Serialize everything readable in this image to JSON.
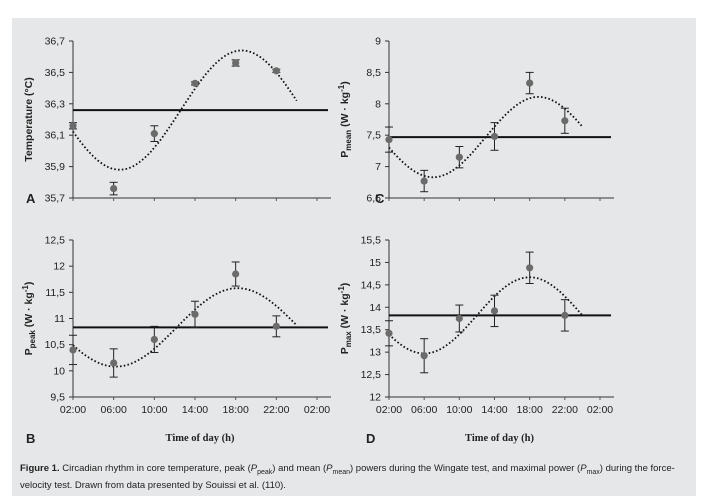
{
  "caption": {
    "label": "Figure 1.",
    "parts": [
      {
        "t": "Circadian rhythm in core temperature, peak ("
      },
      {
        "t": "P",
        "i": true
      },
      {
        "t": "peak",
        "sub": true
      },
      {
        "t": ") and mean ("
      },
      {
        "t": "P",
        "i": true
      },
      {
        "t": "mean",
        "sub": true
      },
      {
        "t": ") powers during the Wingate test, and maximal power ("
      },
      {
        "t": "P",
        "i": true
      },
      {
        "t": "max",
        "sub": true
      },
      {
        "t": ") during the force-velocity test. Drawn from data presented by Souissi et al. (110)."
      }
    ]
  },
  "chart_data": [
    {
      "panel": "A",
      "type": "scatter",
      "ylabel": {
        "main": "Temperature (°C)",
        "sub": ""
      },
      "ylim": [
        35.7,
        36.7
      ],
      "yticks": [
        "35,7",
        "35,9",
        "36,1",
        "36,3",
        "36,5",
        "36,7"
      ],
      "yticks_values": [
        35.7,
        35.9,
        36.1,
        36.3,
        36.5,
        36.7
      ],
      "xticks": [],
      "xlabel": "",
      "x": [
        2,
        6,
        10,
        14,
        18,
        22
      ],
      "y": [
        36.16,
        35.76,
        36.11,
        36.43,
        36.56,
        36.51
      ],
      "err": [
        0.02,
        0.04,
        0.05,
        0.01,
        0.02,
        0.01
      ],
      "mesor": 36.26,
      "fit": {
        "amplitude": 0.38,
        "acrophase": 18.6,
        "period": 24
      },
      "xlim": [
        2,
        26
      ],
      "ticks_right_axis": true
    },
    {
      "panel": "C",
      "type": "scatter",
      "ylabel": {
        "main": "P",
        "sub": "mean",
        "unit": " (W · kg",
        "sup": "-1",
        "end": ")"
      },
      "ylim": [
        6.5,
        9
      ],
      "yticks": [
        "6,5",
        "7",
        "7,5",
        "8",
        "8,5",
        "9"
      ],
      "yticks_values": [
        6.5,
        7,
        7.5,
        8,
        8.5,
        9
      ],
      "xticks": [],
      "xlabel": "",
      "x": [
        2,
        6,
        10,
        14,
        18,
        22
      ],
      "y": [
        7.43,
        6.77,
        7.15,
        7.48,
        8.33,
        7.73
      ],
      "err": [
        0.2,
        0.17,
        0.17,
        0.22,
        0.17,
        0.2
      ],
      "mesor": 7.47,
      "fit": {
        "amplitude": 0.64,
        "acrophase": 19.0,
        "period": 24
      },
      "xlim": [
        2,
        26
      ]
    },
    {
      "panel": "B",
      "type": "scatter",
      "ylabel": {
        "main": "P",
        "sub": "peak",
        "unit": " (W · kg",
        "sup": "-1",
        "end": ")"
      },
      "ylim": [
        9.5,
        12.5
      ],
      "yticks": [
        "9,5",
        "10",
        "10,5",
        "11",
        "11,5",
        "12",
        "12,5"
      ],
      "yticks_values": [
        9.5,
        10,
        10.5,
        11,
        11.5,
        12,
        12.5
      ],
      "xticks": [
        "02:00",
        "06:00",
        "10:00",
        "14:00",
        "18:00",
        "22:00",
        "02:00"
      ],
      "xlabel": "Time of day (h)",
      "x": [
        2,
        6,
        10,
        14,
        18,
        22
      ],
      "y": [
        10.4,
        10.15,
        10.6,
        11.08,
        11.85,
        10.85
      ],
      "err": [
        0.28,
        0.27,
        0.25,
        0.25,
        0.23,
        0.2
      ],
      "mesor": 10.83,
      "fit": {
        "amplitude": 0.75,
        "acrophase": 18.2,
        "period": 24
      },
      "xlim": [
        2,
        26
      ]
    },
    {
      "panel": "D",
      "type": "scatter",
      "ylabel": {
        "main": "P",
        "sub": "max",
        "unit": " (W · kg",
        "sup": "-1",
        "end": ")"
      },
      "ylim": [
        12,
        15.5
      ],
      "yticks": [
        "12",
        "12,5",
        "13",
        "13,5",
        "14",
        "14,5",
        "15",
        "15,5"
      ],
      "yticks_values": [
        12,
        12.5,
        13,
        13.5,
        14,
        14.5,
        15,
        15.5
      ],
      "xticks": [
        "02:00",
        "06:00",
        "10:00",
        "14:00",
        "18:00",
        "22:00",
        "02:00"
      ],
      "xlabel": "Time of day (h)",
      "x": [
        2,
        6,
        10,
        14,
        18,
        22
      ],
      "y": [
        13.42,
        12.92,
        13.75,
        13.92,
        14.88,
        13.82
      ],
      "err": [
        0.28,
        0.38,
        0.3,
        0.35,
        0.35,
        0.35
      ],
      "mesor": 13.82,
      "fit": {
        "amplitude": 0.85,
        "acrophase": 18.0,
        "period": 24
      },
      "xlim": [
        2,
        26
      ]
    }
  ]
}
